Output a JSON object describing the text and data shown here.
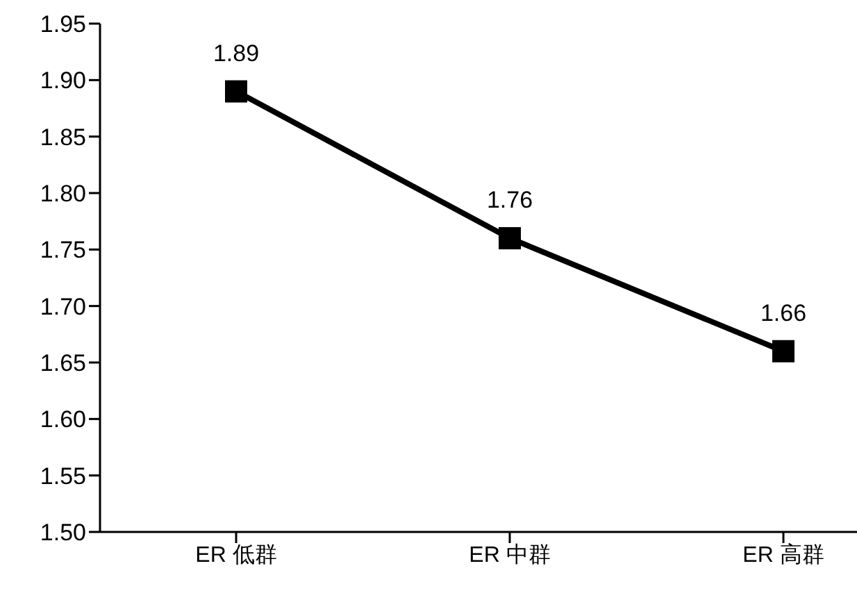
{
  "chart_data": {
    "type": "line",
    "categories": [
      "ER 低群",
      "ER 中群",
      "ER 高群"
    ],
    "series": [
      {
        "color": "#000000",
        "values": [
          1.89,
          1.76,
          1.66
        ]
      }
    ],
    "ylim": [
      1.5,
      1.95
    ],
    "yticks": [
      {
        "value": 1.5,
        "label": "1.50"
      },
      {
        "value": 1.55,
        "label": "1.55"
      },
      {
        "value": 1.6,
        "label": "1.60"
      },
      {
        "value": 1.65,
        "label": "1.65"
      },
      {
        "value": 1.7,
        "label": "1.70"
      },
      {
        "value": 1.75,
        "label": "1.75"
      },
      {
        "value": 1.8,
        "label": "1.80"
      },
      {
        "value": 1.85,
        "label": "1.85"
      },
      {
        "value": 1.9,
        "label": "1.90"
      },
      {
        "value": 1.95,
        "label": "1.95"
      }
    ],
    "data_labels": true,
    "marker": "square",
    "line_style": "solid",
    "grid": false,
    "legend": false
  }
}
